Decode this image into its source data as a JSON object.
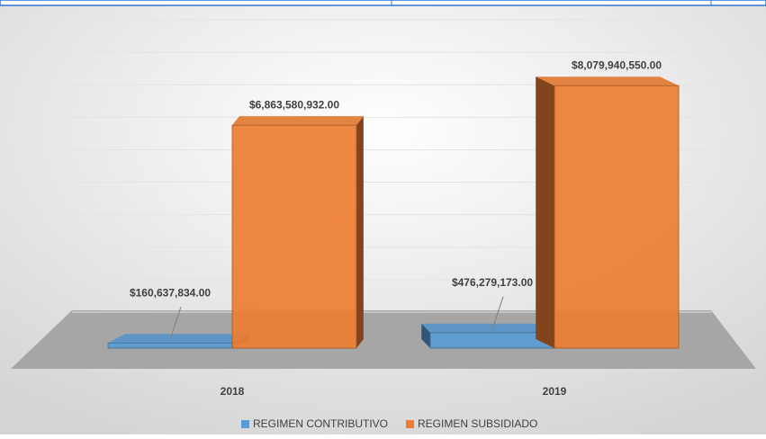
{
  "chart_data": {
    "type": "bar3d",
    "categories": [
      "2018",
      "2019"
    ],
    "series": [
      {
        "name": "REGIMEN CONTRIBUTIVO",
        "color": "#5b9bd5",
        "values": [
          160637834,
          476279173
        ],
        "value_labels": [
          "$160,637,834.00",
          "$476,279,173.00"
        ]
      },
      {
        "name": "REGIMEN SUBSIDIADO",
        "color": "#ed7d31",
        "values": [
          6863580932,
          8079940550
        ],
        "value_labels": [
          "$6,863,580,932.00",
          "$8,079,940,550.00"
        ]
      }
    ],
    "ylim": [
      0,
      9000000000
    ],
    "yticks": [
      0,
      1000000000,
      2000000000,
      3000000000,
      4000000000,
      5000000000,
      6000000000,
      7000000000,
      8000000000,
      9000000000
    ],
    "grid": true,
    "legend": "bottom"
  }
}
